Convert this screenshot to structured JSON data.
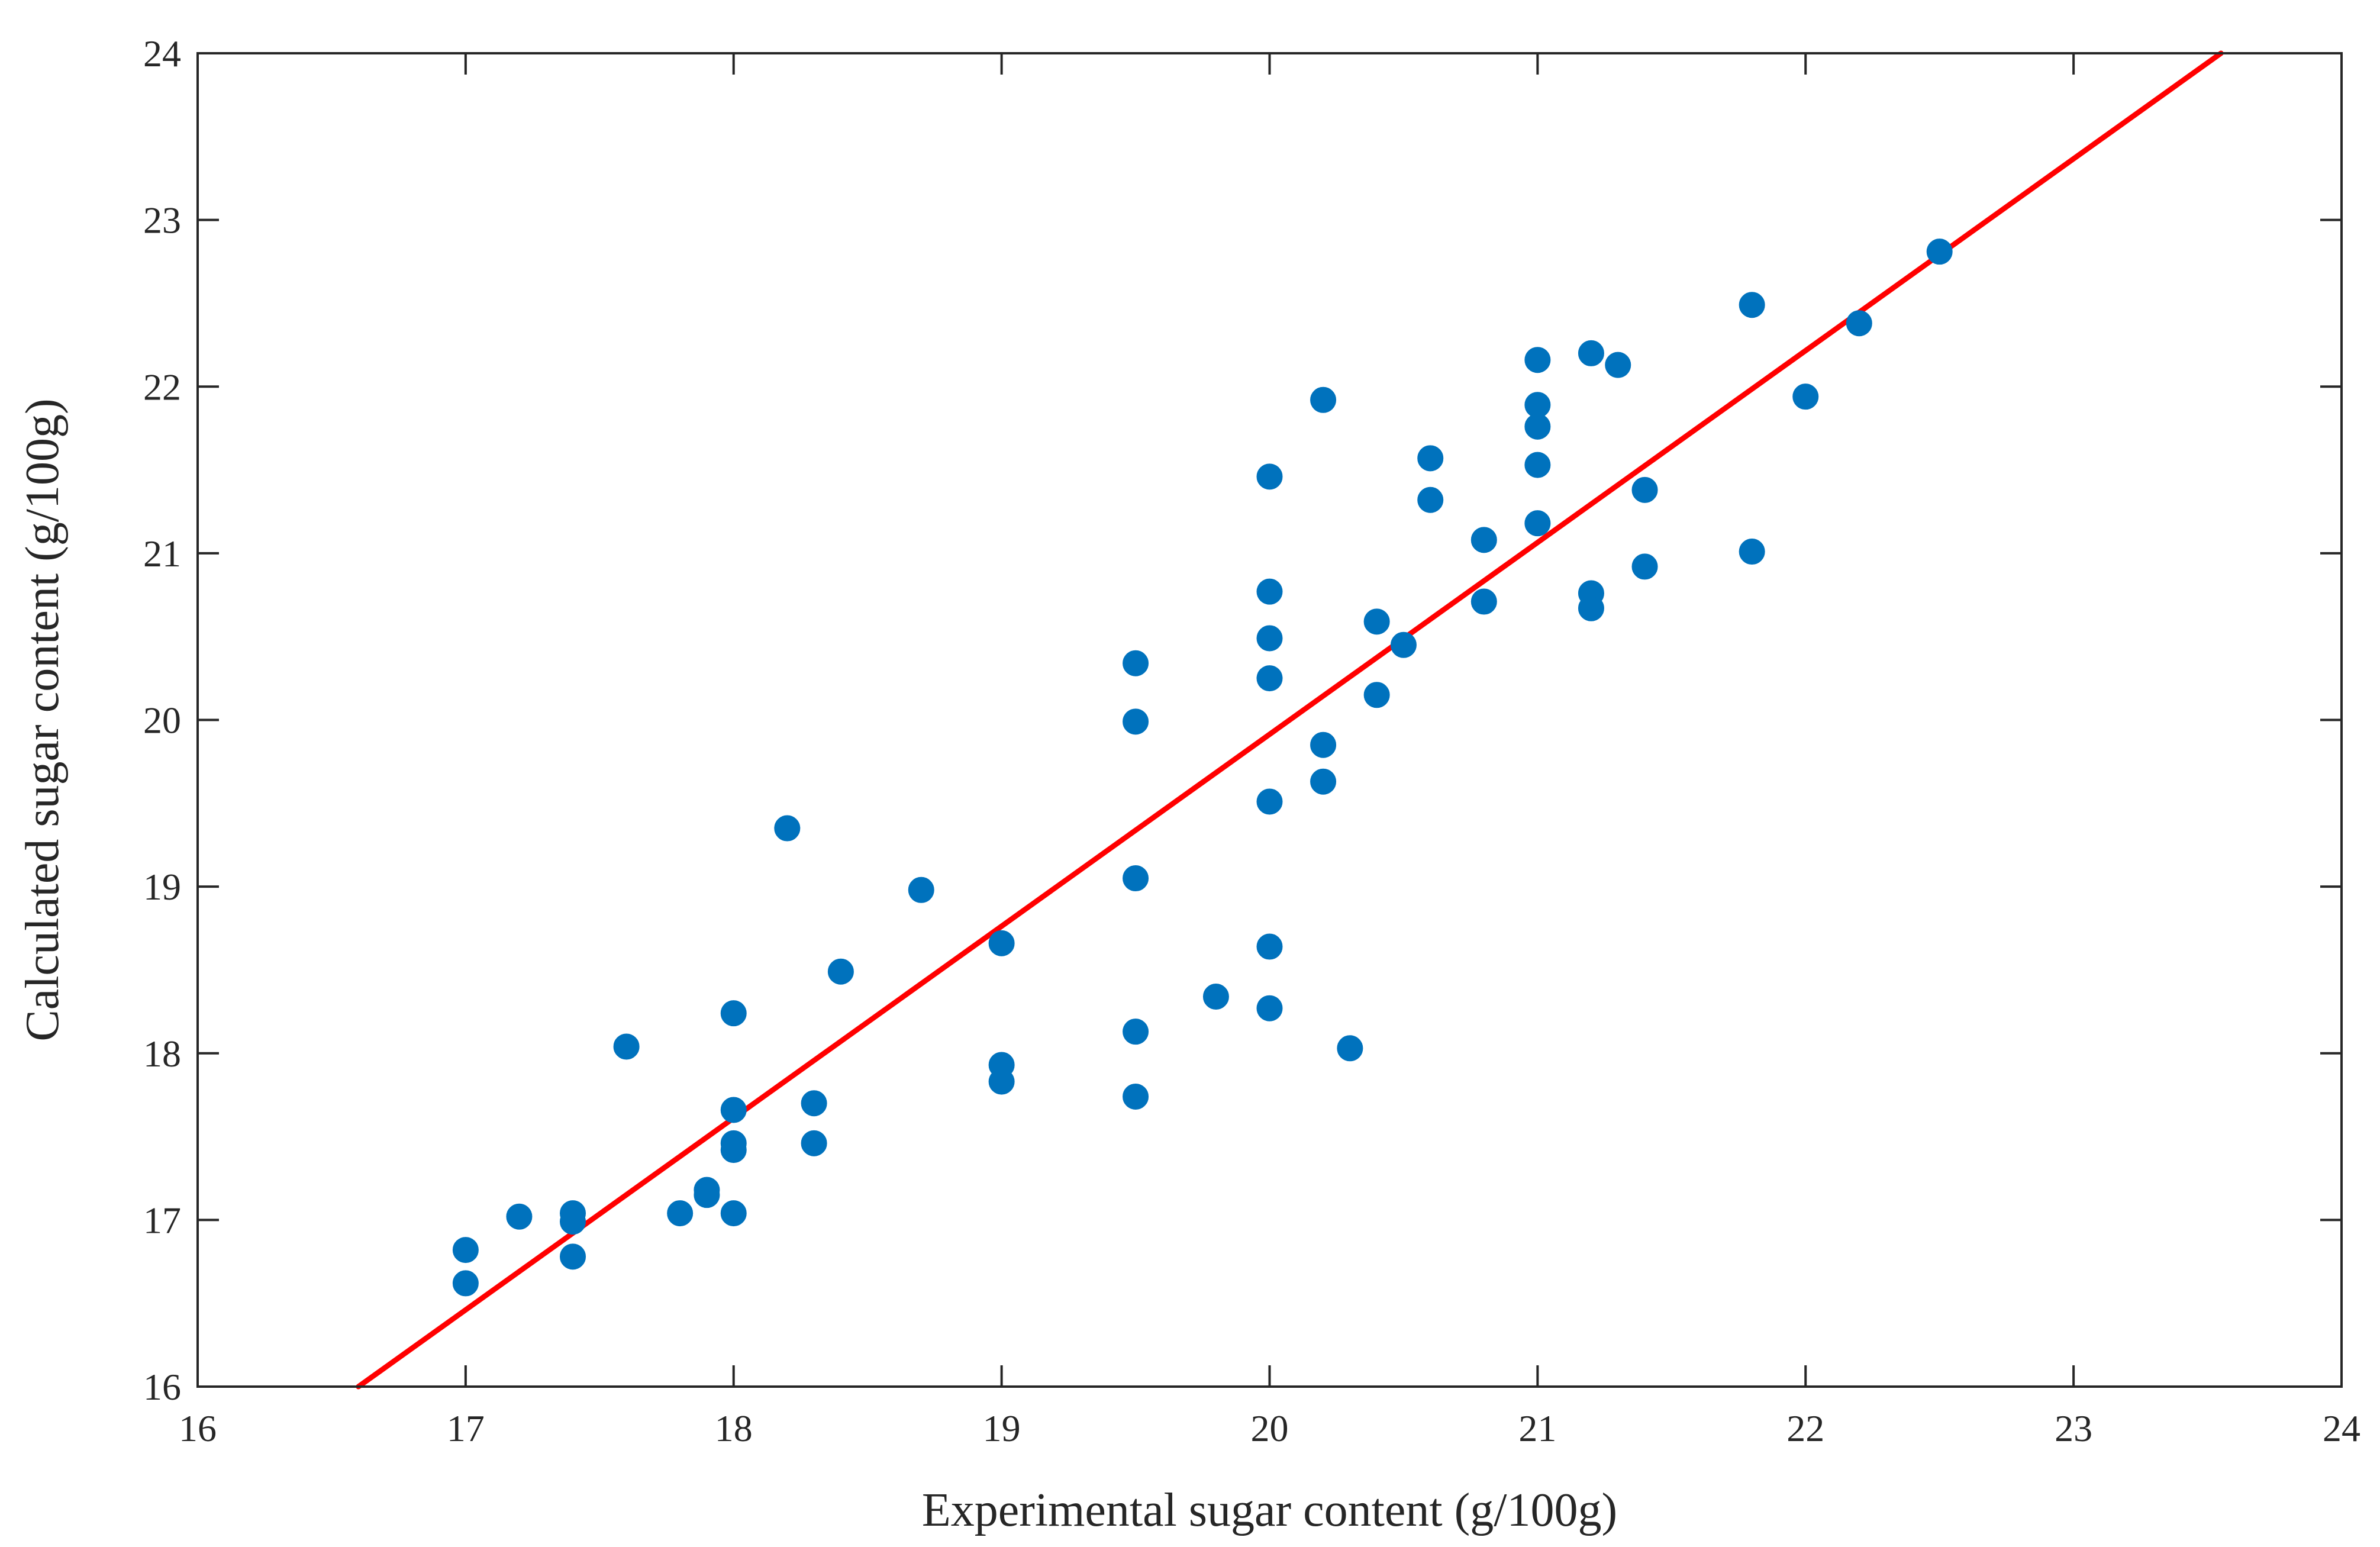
{
  "chart_data": {
    "type": "scatter",
    "title": "",
    "xlabel": "Experimental sugar content (g/100g)",
    "ylabel": "Calculated sugar content (g/100g)",
    "xlim": [
      16,
      24
    ],
    "ylim": [
      16,
      24
    ],
    "xticks": [
      "16",
      "17",
      "18",
      "19",
      "20",
      "21",
      "22",
      "23",
      "24"
    ],
    "yticks": [
      "16",
      "17",
      "18",
      "19",
      "20",
      "21",
      "22",
      "23",
      "24"
    ],
    "grid": false,
    "colors": {
      "points": "#0072BD",
      "fit_line": "#FF0000",
      "axes": "#262626"
    },
    "series": [
      {
        "name": "samples",
        "points": [
          [
            17.0,
            16.82
          ],
          [
            17.0,
            16.62
          ],
          [
            17.2,
            17.02
          ],
          [
            17.4,
            17.04
          ],
          [
            17.4,
            16.99
          ],
          [
            17.4,
            16.78
          ],
          [
            17.6,
            18.04
          ],
          [
            17.8,
            17.04
          ],
          [
            17.9,
            17.18
          ],
          [
            17.9,
            17.15
          ],
          [
            18.0,
            17.04
          ],
          [
            18.0,
            17.42
          ],
          [
            18.0,
            17.46
          ],
          [
            18.0,
            17.66
          ],
          [
            18.0,
            18.24
          ],
          [
            18.2,
            19.35
          ],
          [
            18.3,
            17.7
          ],
          [
            18.3,
            17.46
          ],
          [
            18.4,
            18.49
          ],
          [
            18.7,
            18.98
          ],
          [
            19.0,
            18.66
          ],
          [
            19.0,
            17.93
          ],
          [
            19.0,
            17.83
          ],
          [
            19.5,
            20.34
          ],
          [
            19.5,
            19.99
          ],
          [
            19.5,
            19.05
          ],
          [
            19.5,
            18.13
          ],
          [
            19.5,
            17.74
          ],
          [
            19.8,
            18.34
          ],
          [
            20.0,
            21.46
          ],
          [
            20.0,
            20.77
          ],
          [
            20.0,
            20.49
          ],
          [
            20.0,
            20.25
          ],
          [
            20.0,
            19.51
          ],
          [
            20.0,
            18.64
          ],
          [
            20.0,
            18.27
          ],
          [
            20.2,
            21.92
          ],
          [
            20.2,
            19.85
          ],
          [
            20.2,
            19.63
          ],
          [
            20.3,
            18.03
          ],
          [
            20.4,
            20.59
          ],
          [
            20.4,
            20.15
          ],
          [
            20.5,
            20.45
          ],
          [
            20.6,
            21.57
          ],
          [
            20.6,
            21.32
          ],
          [
            20.8,
            21.08
          ],
          [
            20.8,
            20.71
          ],
          [
            21.0,
            22.16
          ],
          [
            21.0,
            21.89
          ],
          [
            21.0,
            21.76
          ],
          [
            21.0,
            21.53
          ],
          [
            21.0,
            21.18
          ],
          [
            21.2,
            22.2
          ],
          [
            21.2,
            20.76
          ],
          [
            21.2,
            20.67
          ],
          [
            21.3,
            22.13
          ],
          [
            21.4,
            21.38
          ],
          [
            21.4,
            20.92
          ],
          [
            21.8,
            22.49
          ],
          [
            21.8,
            21.01
          ],
          [
            22.0,
            21.94
          ],
          [
            22.2,
            22.38
          ],
          [
            22.5,
            22.81
          ]
        ]
      }
    ],
    "fit_line": {
      "name": "fit",
      "x": [
        16.6,
        23.55
      ],
      "y": [
        16.0,
        24.0
      ]
    }
  }
}
